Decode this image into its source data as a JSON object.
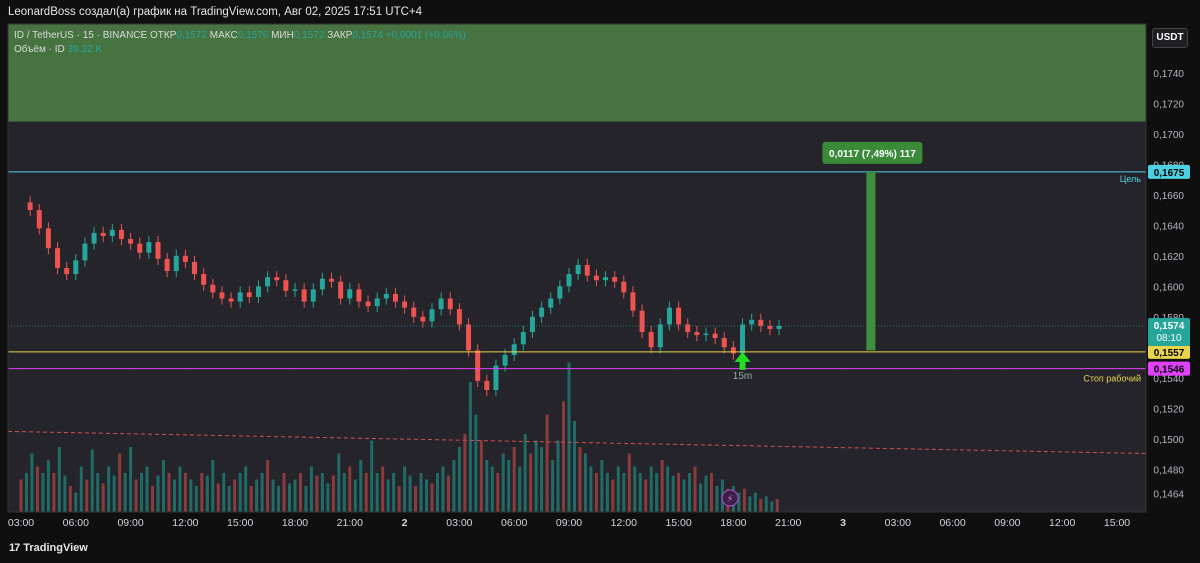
{
  "header": {
    "attribution": "LeonardBoss создал(а) график на TradingView.com, Авг 02, 2025 17:51 UTC+4"
  },
  "legend": {
    "symbol_line": "ID / TetherUS · 15 · BINANCE",
    "open_label": "ОТКР",
    "open_value": "0,1572",
    "high_label": "МАКС",
    "high_value": "0,1576",
    "low_label": "МИН",
    "low_value": "0,1572",
    "close_label": "ЗАКР",
    "close_value": "0,1574",
    "change": "+0,0001 (+0,06%)",
    "volume_label": "Объём · ID",
    "volume_value": "39,32 K"
  },
  "currency_button": "USDT",
  "footer": {
    "brand": "TradingView"
  },
  "chart_data": {
    "type": "candlestick",
    "symbol": "ID / TetherUS",
    "interval": "15",
    "exchange": "BINANCE",
    "ylim": [
      0.1452,
      0.1772
    ],
    "y_ticks": [
      {
        "value": 0.1464,
        "label": "0,1464"
      },
      {
        "value": 0.148,
        "label": "0,1480"
      },
      {
        "value": 0.15,
        "label": "0,1500"
      },
      {
        "value": 0.152,
        "label": "0,1520"
      },
      {
        "value": 0.154,
        "label": "0,1540"
      },
      {
        "value": 0.158,
        "label": "0,1580"
      },
      {
        "value": 0.16,
        "label": "0,1600"
      },
      {
        "value": 0.162,
        "label": "0,1620"
      },
      {
        "value": 0.164,
        "label": "0,1640"
      },
      {
        "value": 0.166,
        "label": "0,1660"
      },
      {
        "value": 0.168,
        "label": "0,1680"
      },
      {
        "value": 0.17,
        "label": "0,1700"
      },
      {
        "value": 0.172,
        "label": "0,1720"
      },
      {
        "value": 0.174,
        "label": "0,1740"
      }
    ],
    "x_ticks": [
      "03:00",
      "06:00",
      "09:00",
      "12:00",
      "15:00",
      "18:00",
      "21:00",
      "2",
      "03:00",
      "06:00",
      "09:00",
      "12:00",
      "15:00",
      "18:00",
      "21:00",
      "3",
      "03:00",
      "06:00",
      "09:00",
      "12:00",
      "15:00"
    ],
    "time_range_hours": [
      3,
      63
    ],
    "price_series": [
      [
        3.0,
        0.1655
      ],
      [
        3.5,
        0.165
      ],
      [
        4.0,
        0.1638
      ],
      [
        4.5,
        0.1625
      ],
      [
        5.0,
        0.1612
      ],
      [
        5.5,
        0.1608
      ],
      [
        6.0,
        0.1617
      ],
      [
        6.5,
        0.1628
      ],
      [
        7.0,
        0.1635
      ],
      [
        7.5,
        0.1633
      ],
      [
        8.0,
        0.1637
      ],
      [
        8.5,
        0.1631
      ],
      [
        9.0,
        0.1628
      ],
      [
        9.5,
        0.1622
      ],
      [
        10.0,
        0.1629
      ],
      [
        10.5,
        0.1618
      ],
      [
        11.0,
        0.161
      ],
      [
        11.5,
        0.162
      ],
      [
        12.0,
        0.1616
      ],
      [
        12.5,
        0.1608
      ],
      [
        13.0,
        0.1601
      ],
      [
        13.5,
        0.1596
      ],
      [
        14.0,
        0.1592
      ],
      [
        14.5,
        0.159
      ],
      [
        15.0,
        0.1596
      ],
      [
        15.5,
        0.1593
      ],
      [
        16.0,
        0.16
      ],
      [
        16.5,
        0.1606
      ],
      [
        17.0,
        0.1604
      ],
      [
        17.5,
        0.1597
      ],
      [
        18.0,
        0.1598
      ],
      [
        18.5,
        0.159
      ],
      [
        19.0,
        0.1598
      ],
      [
        19.5,
        0.1605
      ],
      [
        20.0,
        0.1603
      ],
      [
        20.5,
        0.1592
      ],
      [
        21.0,
        0.1598
      ],
      [
        21.5,
        0.159
      ],
      [
        22.0,
        0.1587
      ],
      [
        22.5,
        0.1592
      ],
      [
        23.0,
        0.1595
      ],
      [
        23.5,
        0.159
      ],
      [
        24.0,
        0.1586
      ],
      [
        24.5,
        0.158
      ],
      [
        25.0,
        0.1577
      ],
      [
        25.5,
        0.1585
      ],
      [
        26.0,
        0.1592
      ],
      [
        26.5,
        0.1585
      ],
      [
        27.0,
        0.1575
      ],
      [
        27.5,
        0.1558
      ],
      [
        28.0,
        0.1538
      ],
      [
        28.5,
        0.1532
      ],
      [
        29.0,
        0.1548
      ],
      [
        29.5,
        0.1555
      ],
      [
        30.0,
        0.1562
      ],
      [
        30.5,
        0.157
      ],
      [
        31.0,
        0.158
      ],
      [
        31.5,
        0.1586
      ],
      [
        32.0,
        0.1592
      ],
      [
        32.5,
        0.16
      ],
      [
        33.0,
        0.1608
      ],
      [
        33.5,
        0.1614
      ],
      [
        34.0,
        0.1607
      ],
      [
        34.5,
        0.1604
      ],
      [
        35.0,
        0.1606
      ],
      [
        35.5,
        0.1603
      ],
      [
        36.0,
        0.1596
      ],
      [
        36.5,
        0.1584
      ],
      [
        37.0,
        0.157
      ],
      [
        37.5,
        0.156
      ],
      [
        38.0,
        0.1575
      ],
      [
        38.5,
        0.1586
      ],
      [
        39.0,
        0.1575
      ],
      [
        39.5,
        0.157
      ],
      [
        40.0,
        0.1568
      ],
      [
        40.5,
        0.1569
      ],
      [
        41.0,
        0.1566
      ],
      [
        41.5,
        0.156
      ],
      [
        42.0,
        0.1556
      ],
      [
        42.5,
        0.1575
      ],
      [
        43.0,
        0.1578
      ],
      [
        43.5,
        0.1574
      ],
      [
        44.0,
        0.1572
      ],
      [
        44.5,
        0.1574
      ]
    ],
    "volume_series": [
      [
        3.0,
        0.25
      ],
      [
        3.3,
        0.3
      ],
      [
        3.6,
        0.45
      ],
      [
        3.9,
        0.35
      ],
      [
        4.2,
        0.3
      ],
      [
        4.5,
        0.4
      ],
      [
        4.8,
        0.3
      ],
      [
        5.1,
        0.5
      ],
      [
        5.4,
        0.28
      ],
      [
        5.7,
        0.2
      ],
      [
        6.0,
        0.15
      ],
      [
        6.3,
        0.35
      ],
      [
        6.6,
        0.25
      ],
      [
        6.9,
        0.48
      ],
      [
        7.2,
        0.3
      ],
      [
        7.5,
        0.22
      ],
      [
        7.8,
        0.35
      ],
      [
        8.1,
        0.28
      ],
      [
        8.4,
        0.45
      ],
      [
        8.7,
        0.3
      ],
      [
        9.0,
        0.5
      ],
      [
        9.3,
        0.25
      ],
      [
        9.6,
        0.3
      ],
      [
        9.9,
        0.35
      ],
      [
        10.2,
        0.2
      ],
      [
        10.5,
        0.28
      ],
      [
        10.8,
        0.4
      ],
      [
        11.1,
        0.3
      ],
      [
        11.4,
        0.25
      ],
      [
        11.7,
        0.35
      ],
      [
        12.0,
        0.3
      ],
      [
        12.3,
        0.25
      ],
      [
        12.6,
        0.2
      ],
      [
        12.9,
        0.3
      ],
      [
        13.2,
        0.28
      ],
      [
        13.5,
        0.4
      ],
      [
        13.8,
        0.22
      ],
      [
        14.1,
        0.3
      ],
      [
        14.4,
        0.2
      ],
      [
        14.7,
        0.25
      ],
      [
        15.0,
        0.3
      ],
      [
        15.3,
        0.35
      ],
      [
        15.6,
        0.2
      ],
      [
        15.9,
        0.25
      ],
      [
        16.2,
        0.3
      ],
      [
        16.5,
        0.4
      ],
      [
        16.8,
        0.25
      ],
      [
        17.1,
        0.2
      ],
      [
        17.4,
        0.3
      ],
      [
        17.7,
        0.22
      ],
      [
        18.0,
        0.25
      ],
      [
        18.3,
        0.3
      ],
      [
        18.6,
        0.2
      ],
      [
        18.9,
        0.35
      ],
      [
        19.2,
        0.28
      ],
      [
        19.5,
        0.3
      ],
      [
        19.8,
        0.22
      ],
      [
        20.1,
        0.28
      ],
      [
        20.4,
        0.45
      ],
      [
        20.7,
        0.3
      ],
      [
        21.0,
        0.35
      ],
      [
        21.3,
        0.25
      ],
      [
        21.6,
        0.4
      ],
      [
        21.9,
        0.3
      ],
      [
        22.2,
        0.55
      ],
      [
        22.5,
        0.3
      ],
      [
        22.8,
        0.35
      ],
      [
        23.1,
        0.25
      ],
      [
        23.4,
        0.3
      ],
      [
        23.7,
        0.2
      ],
      [
        24.0,
        0.35
      ],
      [
        24.3,
        0.28
      ],
      [
        24.6,
        0.2
      ],
      [
        24.9,
        0.3
      ],
      [
        25.2,
        0.25
      ],
      [
        25.5,
        0.22
      ],
      [
        25.8,
        0.3
      ],
      [
        26.1,
        0.35
      ],
      [
        26.4,
        0.28
      ],
      [
        26.7,
        0.4
      ],
      [
        27.0,
        0.5
      ],
      [
        27.3,
        0.6
      ],
      [
        27.6,
        1.0
      ],
      [
        27.9,
        0.75
      ],
      [
        28.2,
        0.55
      ],
      [
        28.5,
        0.4
      ],
      [
        28.8,
        0.35
      ],
      [
        29.1,
        0.3
      ],
      [
        29.4,
        0.45
      ],
      [
        29.7,
        0.4
      ],
      [
        30.0,
        0.5
      ],
      [
        30.3,
        0.35
      ],
      [
        30.6,
        0.6
      ],
      [
        30.9,
        0.45
      ],
      [
        31.2,
        0.55
      ],
      [
        31.5,
        0.5
      ],
      [
        31.8,
        0.75
      ],
      [
        32.1,
        0.4
      ],
      [
        32.4,
        0.55
      ],
      [
        32.7,
        0.85
      ],
      [
        33.0,
        1.15
      ],
      [
        33.3,
        0.7
      ],
      [
        33.6,
        0.5
      ],
      [
        33.9,
        0.45
      ],
      [
        34.2,
        0.35
      ],
      [
        34.5,
        0.3
      ],
      [
        34.8,
        0.4
      ],
      [
        35.1,
        0.3
      ],
      [
        35.4,
        0.25
      ],
      [
        35.7,
        0.35
      ],
      [
        36.0,
        0.3
      ],
      [
        36.3,
        0.45
      ],
      [
        36.6,
        0.35
      ],
      [
        36.9,
        0.3
      ],
      [
        37.2,
        0.25
      ],
      [
        37.5,
        0.35
      ],
      [
        37.8,
        0.3
      ],
      [
        38.1,
        0.4
      ],
      [
        38.4,
        0.35
      ],
      [
        38.7,
        0.28
      ],
      [
        39.0,
        0.3
      ],
      [
        39.3,
        0.25
      ],
      [
        39.6,
        0.3
      ],
      [
        39.9,
        0.35
      ],
      [
        40.2,
        0.22
      ],
      [
        40.5,
        0.28
      ],
      [
        40.8,
        0.3
      ],
      [
        41.1,
        0.2
      ],
      [
        41.4,
        0.25
      ],
      [
        41.7,
        0.18
      ],
      [
        42.0,
        0.2
      ],
      [
        42.3,
        0.15
      ],
      [
        42.6,
        0.18
      ],
      [
        42.9,
        0.12
      ],
      [
        43.2,
        0.15
      ],
      [
        43.5,
        0.1
      ],
      [
        43.8,
        0.12
      ],
      [
        44.1,
        0.08
      ],
      [
        44.4,
        0.1
      ]
    ],
    "volume_ma": [
      [
        3.0,
        0.62
      ],
      [
        63.0,
        0.45
      ]
    ],
    "annotations": {
      "top_zone": {
        "from": 0.1708,
        "to": 0.1772,
        "color": "#4a7c43"
      },
      "target_line": {
        "value": 0.1675,
        "price_label": "0,1675",
        "text": "Цель",
        "color": "#4dd0e1"
      },
      "entry_line": {
        "value": 0.1557,
        "price_label": "0,1557",
        "color": "#e8d44d"
      },
      "stop_line": {
        "value": 0.1546,
        "price_label": "0,1546",
        "text": "Стоп рабочий",
        "color": "#e040fb"
      },
      "current_price": {
        "value": 0.1574,
        "price_label": "0,1574",
        "countdown": "08:10",
        "color": "#26a69a"
      },
      "measure_bar": {
        "time": 49.5,
        "from": 0.1558,
        "to": 0.1675,
        "label": "0,0117 (7,49%) 117",
        "color": "#3d8f3d"
      },
      "arrow": {
        "time": 42.5,
        "value": 0.1557,
        "label": "15m",
        "color": "#22dd22"
      }
    },
    "colors": {
      "up": "#26a69a",
      "down": "#ef5350",
      "grid": "#26262e",
      "plot_bg": "#25242b"
    }
  }
}
